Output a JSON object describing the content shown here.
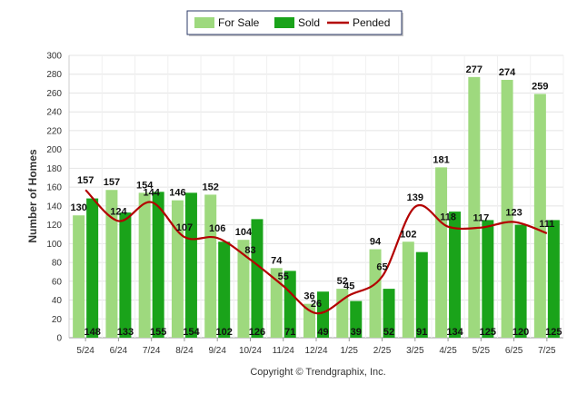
{
  "chart_data": {
    "type": "bar",
    "categories": [
      "5/24",
      "6/24",
      "7/24",
      "8/24",
      "9/24",
      "10/24",
      "11/24",
      "12/24",
      "1/25",
      "2/25",
      "3/25",
      "4/25",
      "5/25",
      "6/25",
      "7/25"
    ],
    "series": [
      {
        "name": "For Sale",
        "type": "bar",
        "color": "#9ed97e",
        "values": [
          130,
          157,
          154,
          146,
          152,
          104,
          74,
          36,
          52,
          94,
          102,
          181,
          277,
          274,
          259
        ]
      },
      {
        "name": "Sold",
        "type": "bar",
        "color": "#1aa31a",
        "values": [
          148,
          133,
          155,
          154,
          102,
          126,
          71,
          49,
          39,
          52,
          91,
          134,
          125,
          120,
          125
        ]
      },
      {
        "name": "Pended",
        "type": "line",
        "color": "#b30000",
        "values": [
          157,
          124,
          144,
          107,
          106,
          83,
          55,
          26,
          45,
          65,
          139,
          118,
          117,
          123,
          111
        ]
      }
    ],
    "ylabel": "Number of Homes",
    "xlabel": "",
    "ylim": [
      0,
      300
    ],
    "yticks": [
      0,
      20,
      40,
      60,
      80,
      100,
      120,
      140,
      160,
      180,
      200,
      220,
      240,
      260,
      280,
      300
    ],
    "grid": true,
    "legend_position": "top-center"
  },
  "footer": {
    "copyright": "Copyright © Trendgraphix, Inc."
  }
}
